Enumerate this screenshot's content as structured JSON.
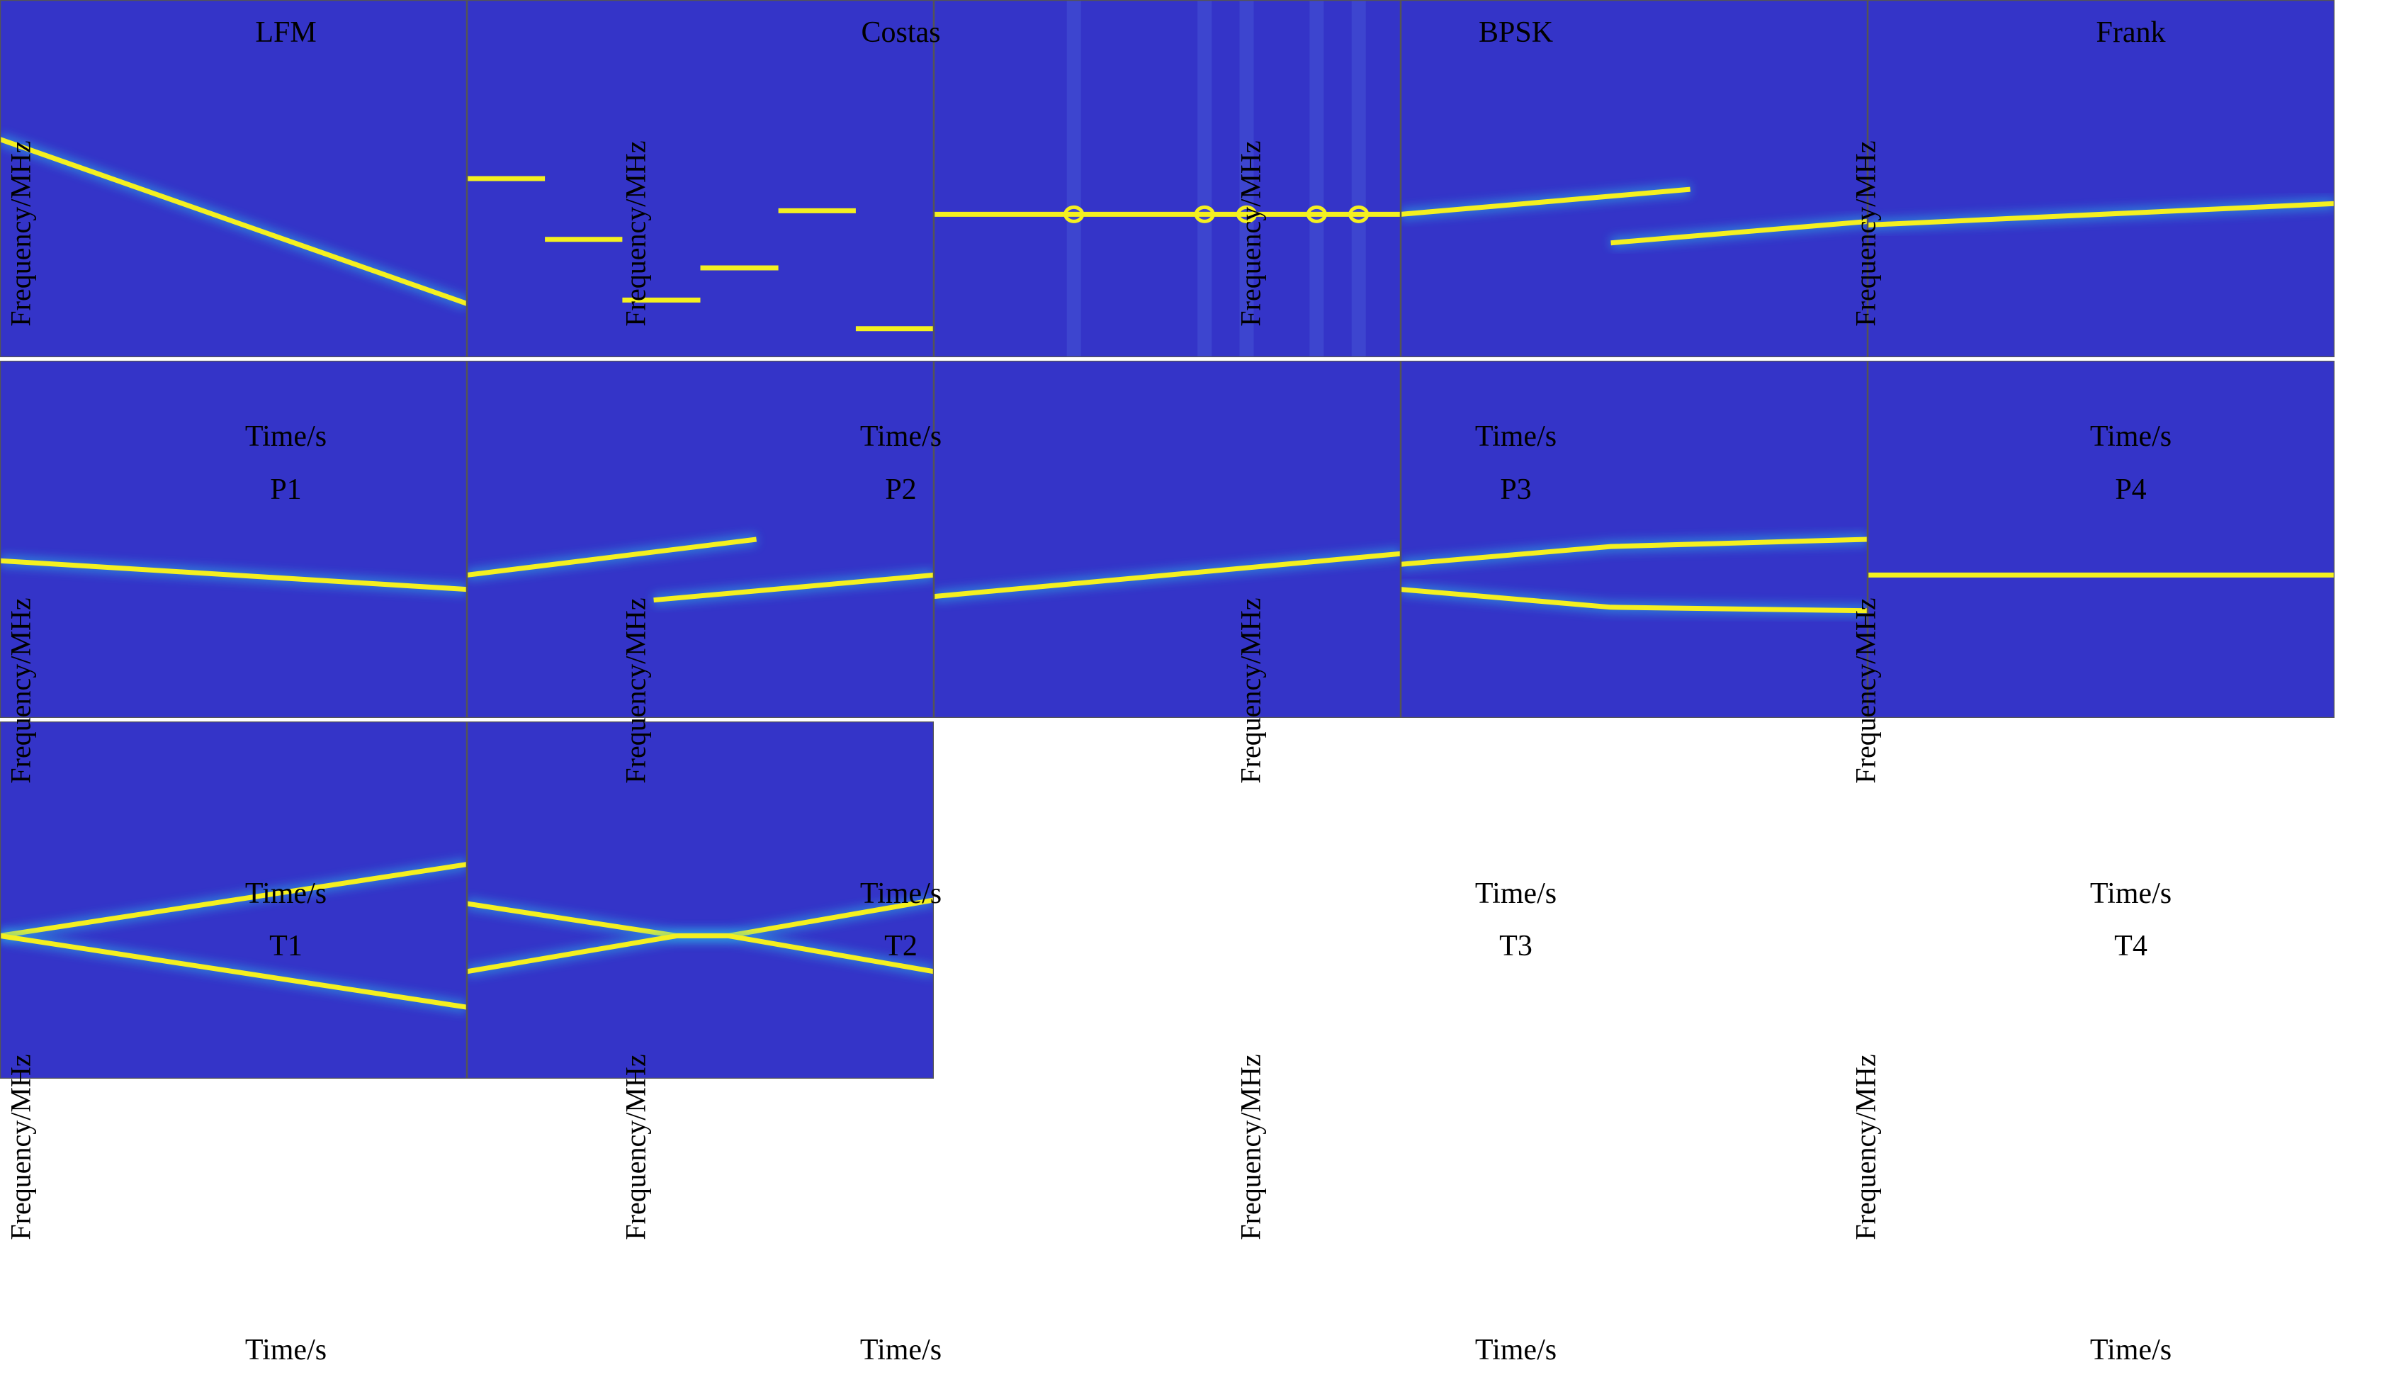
{
  "figure": {
    "colors": {
      "background": "#3434c8",
      "mid": "#2cb8e8",
      "peak": "#f4f020",
      "axes": "#555555"
    }
  },
  "chart_data": [
    {
      "type": "heatmap",
      "title": "LFM",
      "xlabel": "Time/s",
      "ylabel": "Frequency/MHz",
      "series": [
        {
          "points": [
            [
              0.0,
              0.61
            ],
            [
              1.0,
              0.15
            ]
          ]
        }
      ]
    },
    {
      "type": "heatmap",
      "title": "Costas",
      "xlabel": "Time/s",
      "ylabel": "Frequency/MHz",
      "series": [
        {
          "points": [
            [
              0.0,
              0.5
            ],
            [
              0.167,
              0.5
            ]
          ]
        },
        {
          "points": [
            [
              0.167,
              0.33
            ],
            [
              0.333,
              0.33
            ]
          ]
        },
        {
          "points": [
            [
              0.333,
              0.16
            ],
            [
              0.5,
              0.16
            ]
          ]
        },
        {
          "points": [
            [
              0.5,
              0.25
            ],
            [
              0.667,
              0.25
            ]
          ]
        },
        {
          "points": [
            [
              0.667,
              0.41
            ],
            [
              0.833,
              0.41
            ]
          ]
        },
        {
          "points": [
            [
              0.833,
              0.08
            ],
            [
              1.0,
              0.08
            ]
          ]
        }
      ]
    },
    {
      "type": "heatmap",
      "title": "BPSK",
      "xlabel": "Time/s",
      "ylabel": "Frequency/MHz",
      "series": [
        {
          "points": [
            [
              0.0,
              0.4
            ],
            [
              1.0,
              0.4
            ]
          ]
        }
      ],
      "phase_transitions": [
        0.3,
        0.58,
        0.67,
        0.82,
        0.91
      ]
    },
    {
      "type": "heatmap",
      "title": "Frank",
      "xlabel": "Time/s",
      "ylabel": "Frequency/MHz",
      "series": [
        {
          "points": [
            [
              0.0,
              0.4
            ],
            [
              0.62,
              0.47
            ]
          ]
        },
        {
          "points": [
            [
              0.45,
              0.32
            ],
            [
              1.0,
              0.38
            ]
          ]
        }
      ]
    },
    {
      "type": "heatmap",
      "title": "P1",
      "xlabel": "Time/s",
      "ylabel": "Frequency/MHz",
      "series": [
        {
          "points": [
            [
              0.0,
              0.37
            ],
            [
              1.0,
              0.43
            ]
          ]
        }
      ]
    },
    {
      "type": "heatmap",
      "title": "P2",
      "xlabel": "Time/s",
      "ylabel": "Frequency/MHz",
      "series": [
        {
          "points": [
            [
              0.0,
              0.44
            ],
            [
              1.0,
              0.36
            ]
          ]
        }
      ]
    },
    {
      "type": "heatmap",
      "title": "P3",
      "xlabel": "Time/s",
      "ylabel": "Frequency/MHz",
      "series": [
        {
          "points": [
            [
              0.0,
              0.4
            ],
            [
              0.62,
              0.5
            ]
          ]
        },
        {
          "points": [
            [
              0.4,
              0.33
            ],
            [
              1.0,
              0.4
            ]
          ]
        }
      ]
    },
    {
      "type": "heatmap",
      "title": "P4",
      "xlabel": "Time/s",
      "ylabel": "Frequency/MHz",
      "series": [
        {
          "points": [
            [
              0.0,
              0.34
            ],
            [
              1.0,
              0.46
            ]
          ]
        }
      ]
    },
    {
      "type": "heatmap",
      "title": "T1",
      "xlabel": "Time/s",
      "ylabel": "Frequency/MHz",
      "series": [
        {
          "points": [
            [
              0.0,
              0.43
            ],
            [
              0.45,
              0.48
            ],
            [
              1.0,
              0.5
            ]
          ]
        },
        {
          "points": [
            [
              0.0,
              0.36
            ],
            [
              0.45,
              0.31
            ],
            [
              1.0,
              0.3
            ]
          ]
        }
      ]
    },
    {
      "type": "heatmap",
      "title": "T2",
      "xlabel": "Time/s",
      "ylabel": "Frequency/MHz",
      "series": [
        {
          "points": [
            [
              0.0,
              0.4
            ],
            [
              1.0,
              0.4
            ]
          ]
        }
      ]
    },
    {
      "type": "heatmap",
      "title": "T3",
      "xlabel": "Time/s",
      "ylabel": "Frequency/MHz",
      "series": [
        {
          "points": [
            [
              0.0,
              0.4
            ],
            [
              1.0,
              0.6
            ]
          ]
        },
        {
          "points": [
            [
              0.0,
              0.4
            ],
            [
              1.0,
              0.2
            ]
          ]
        }
      ]
    },
    {
      "type": "heatmap",
      "title": "T4",
      "xlabel": "Time/s",
      "ylabel": "Frequency/MHz",
      "series": [
        {
          "points": [
            [
              0.0,
              0.49
            ],
            [
              0.45,
              0.4
            ],
            [
              0.56,
              0.4
            ],
            [
              1.0,
              0.5
            ]
          ]
        },
        {
          "points": [
            [
              0.0,
              0.3
            ],
            [
              0.45,
              0.4
            ],
            [
              0.56,
              0.4
            ],
            [
              1.0,
              0.3
            ]
          ]
        }
      ]
    }
  ]
}
